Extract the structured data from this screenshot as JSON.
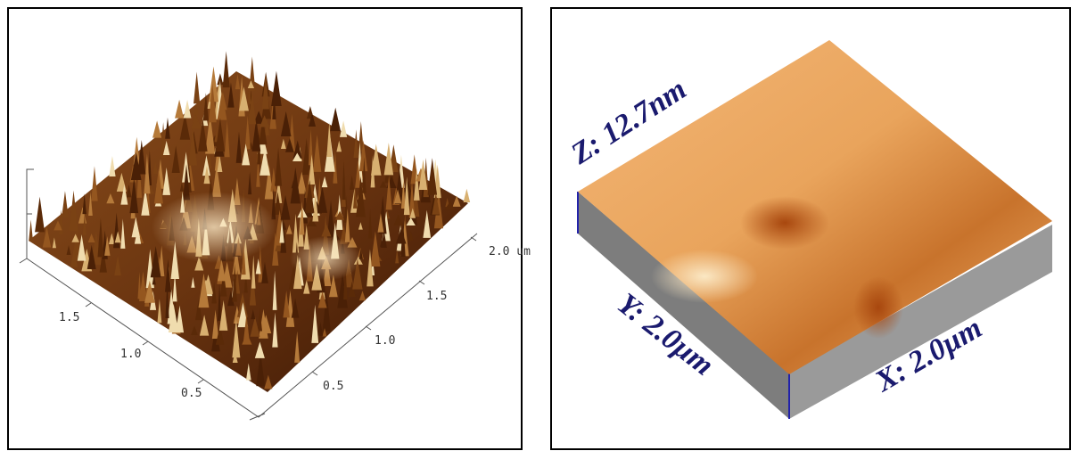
{
  "left_panel": {
    "x_axis_labels": [
      "0.5",
      "1.0",
      "1.5",
      "2.0 um"
    ],
    "y_axis_labels": [
      "1.5",
      "1.0",
      "0.5"
    ]
  },
  "right_panel": {
    "z_label": "Z: 12.7nm",
    "y_label": "Y: 2.0µm",
    "x_label": "X: 2.0µm"
  }
}
